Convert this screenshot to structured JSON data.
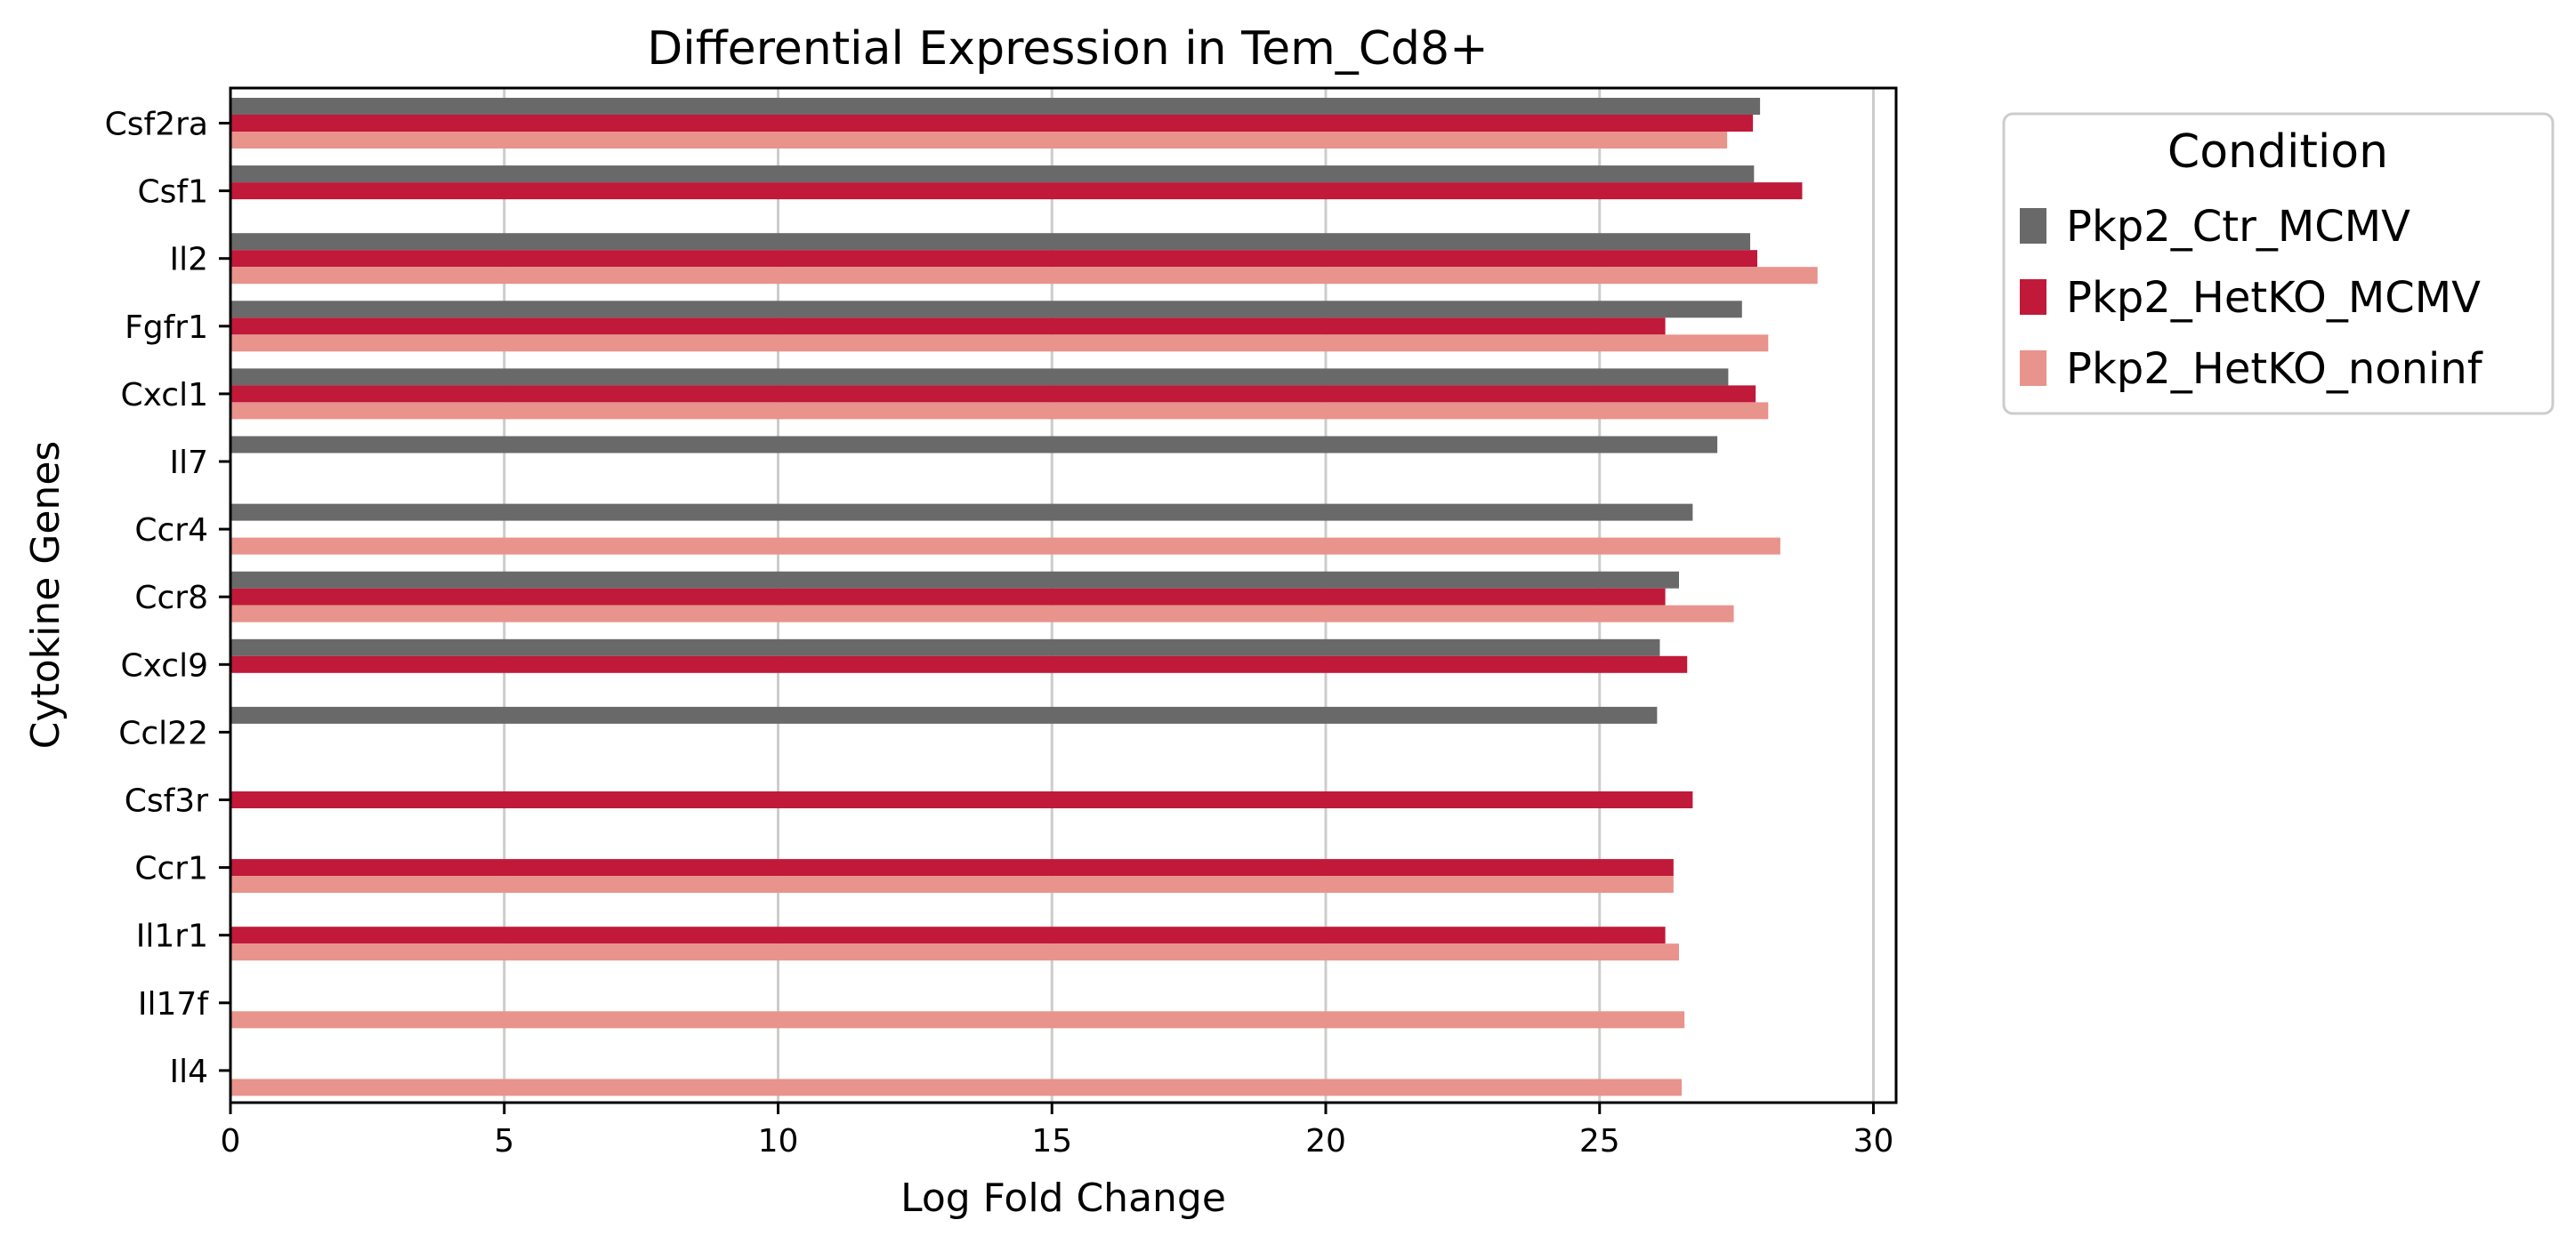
{
  "chart_data": {
    "type": "bar",
    "orientation": "horizontal",
    "title": "Differential Expression in Tem_Cd8+",
    "xlabel": "Log Fold Change",
    "ylabel": "Cytokine Genes",
    "xlim": [
      0,
      30.5
    ],
    "xticks": [
      0,
      5,
      10,
      15,
      20,
      25,
      30
    ],
    "grid": "vertical",
    "legend_position": "outside-top-right",
    "legend_title": "Condition",
    "categories": [
      "Csf2ra",
      "Csf1",
      "Il2",
      "Fgfr1",
      "Cxcl1",
      "Il7",
      "Ccr4",
      "Ccr8",
      "Cxcl9",
      "Ccl22",
      "Csf3r",
      "Ccr1",
      "Il1r1",
      "Il17f",
      "Il4"
    ],
    "series": [
      {
        "name": "Pkp2_Ctr_MCMV",
        "color": "#696969",
        "values": [
          27.93,
          27.82,
          27.75,
          27.6,
          27.35,
          27.15,
          26.7,
          26.45,
          26.1,
          26.05,
          null,
          null,
          null,
          null,
          null
        ]
      },
      {
        "name": "Pkp2_HetKO_MCMV",
        "color": "#c0193a",
        "values": [
          27.8,
          28.7,
          27.88,
          26.2,
          27.85,
          null,
          null,
          26.2,
          26.6,
          null,
          26.7,
          26.35,
          26.2,
          null,
          null
        ]
      },
      {
        "name": "Pkp2_HetKO_noninf",
        "color": "#e8938b",
        "values": [
          27.33,
          null,
          28.98,
          28.08,
          28.08,
          null,
          28.3,
          27.45,
          null,
          null,
          null,
          26.35,
          26.45,
          26.55,
          26.5
        ]
      }
    ]
  }
}
